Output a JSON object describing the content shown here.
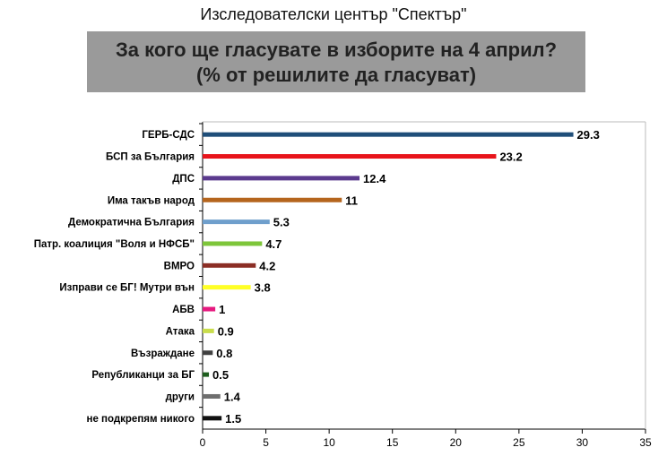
{
  "source": "Изследователски център \"Спектър\"",
  "title_line1": "За кого ще гласувате в изборите на 4 април?",
  "title_line2": "(% от решилите да гласуват)",
  "chart_data": {
    "type": "bar",
    "orientation": "horizontal",
    "categories": [
      "ГЕРБ-СДС",
      "БСП за България",
      "ДПС",
      "Има такъв народ",
      "Демократична България",
      "Патр. коалиция \"Воля и НФСБ\"",
      "ВМРО",
      "Изправи се БГ! Мутри вън",
      "АБВ",
      "Атака",
      "Възраждане",
      "Републиканци за БГ",
      "други",
      "не подкрепям никого"
    ],
    "values": [
      29.3,
      23.2,
      12.4,
      11,
      5.3,
      4.7,
      4.2,
      3.8,
      1,
      0.9,
      0.8,
      0.5,
      1.4,
      1.5
    ],
    "value_labels": [
      "29.3",
      "23.2",
      "12.4",
      "11",
      "5.3",
      "4.7",
      "4.2",
      "3.8",
      "1",
      "0.9",
      "0.8",
      "0.5",
      "1.4",
      "1.5"
    ],
    "colors": [
      "#1f4e79",
      "#e8141b",
      "#5b3a8e",
      "#b5651d",
      "#6f9fcc",
      "#7ec63a",
      "#8b2e25",
      "#ffff26",
      "#e6197f",
      "#c9dd4c",
      "#404040",
      "#1f5e1f",
      "#6e6e6e",
      "#111111"
    ],
    "xlim": [
      0,
      35
    ],
    "xticks": [
      "0",
      "5",
      "10",
      "15",
      "20",
      "25",
      "30",
      "35"
    ],
    "grid": false
  }
}
